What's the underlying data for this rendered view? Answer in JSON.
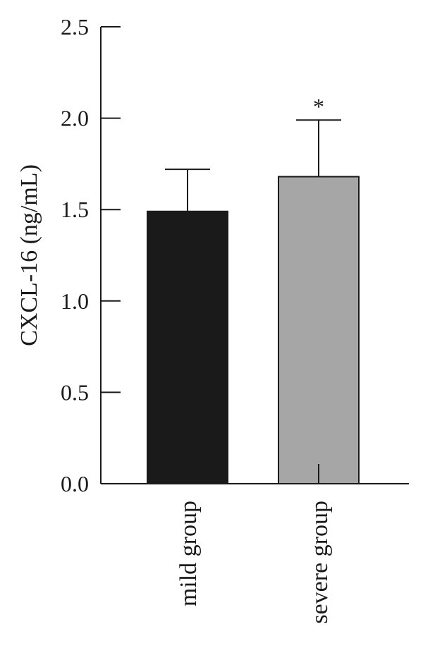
{
  "chart_data": {
    "type": "bar",
    "title": "",
    "xlabel": "",
    "ylabel": "CXCL-16 (ng/mL)",
    "ylim": [
      0,
      2.5
    ],
    "yticks": [
      "0.0",
      "0.5",
      "1.0",
      "1.5",
      "2.0",
      "2.5"
    ],
    "categories": [
      "mild group",
      "severe group"
    ],
    "values": [
      1.49,
      1.68
    ],
    "errors": [
      0.23,
      0.31
    ],
    "significance": [
      "",
      "*"
    ],
    "colors": [
      "#1a1a1a",
      "#a6a6a6"
    ],
    "grid": false
  }
}
